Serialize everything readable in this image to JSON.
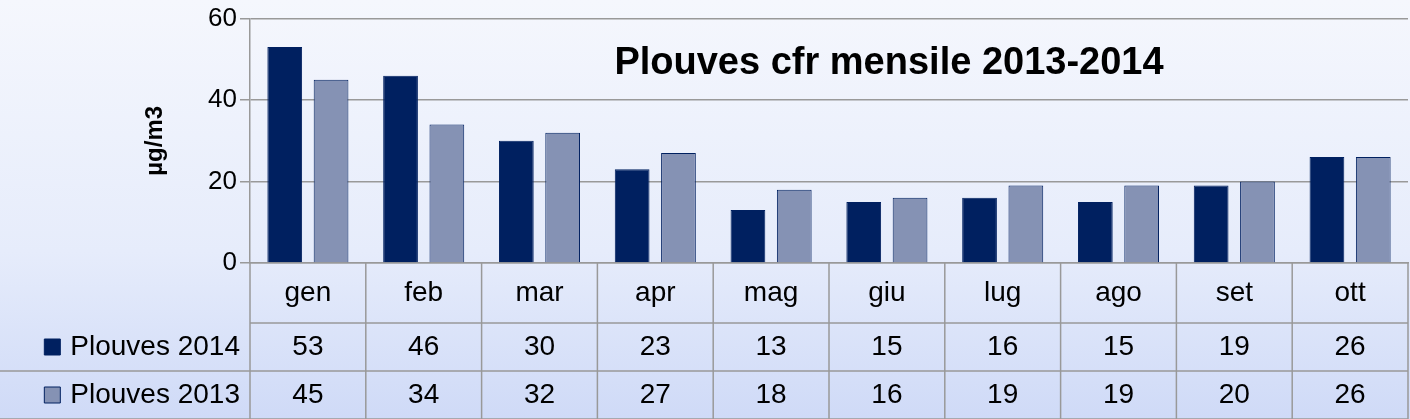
{
  "chart_data": {
    "type": "bar",
    "title": "Plouves cfr mensile 2013-2014",
    "ylabel": "µg/m3",
    "categories": [
      "gen",
      "feb",
      "mar",
      "apr",
      "mag",
      "giu",
      "lug",
      "ago",
      "set",
      "ott"
    ],
    "series": [
      {
        "name": "Plouves 2014",
        "color": "#002060",
        "values": [
          53,
          46,
          30,
          23,
          13,
          15,
          16,
          15,
          19,
          26
        ]
      },
      {
        "name": "Plouves 2013",
        "color": "#8592b4",
        "values": [
          45,
          34,
          32,
          27,
          18,
          16,
          19,
          19,
          20,
          26
        ]
      }
    ],
    "ylim": [
      0,
      60
    ],
    "yticks": [
      0,
      20,
      40,
      60
    ],
    "grid": "y",
    "legend": "bottom left",
    "data_labels": true
  }
}
